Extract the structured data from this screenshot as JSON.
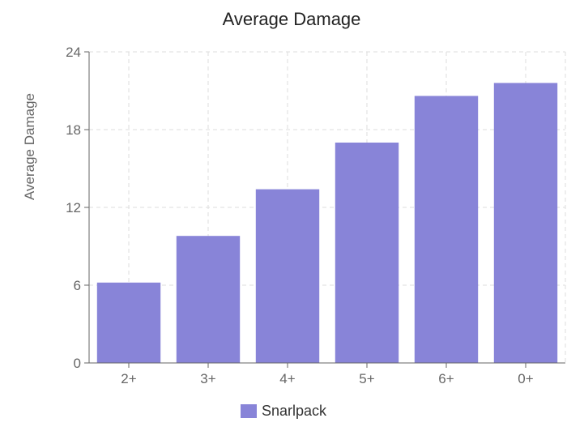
{
  "chart_data": {
    "type": "bar",
    "title": "Average Damage",
    "xlabel": "",
    "ylabel": "Average Damage",
    "categories": [
      "2+",
      "3+",
      "4+",
      "5+",
      "6+",
      "0+"
    ],
    "series": [
      {
        "name": "Snarlpack",
        "color": "#8884d8",
        "values": [
          6.2,
          9.8,
          13.4,
          17.0,
          20.6,
          21.6
        ]
      }
    ],
    "ylim": [
      0,
      24
    ],
    "yticks": [
      0,
      6,
      12,
      18,
      24
    ],
    "grid": true,
    "legend_position": "bottom-center"
  }
}
